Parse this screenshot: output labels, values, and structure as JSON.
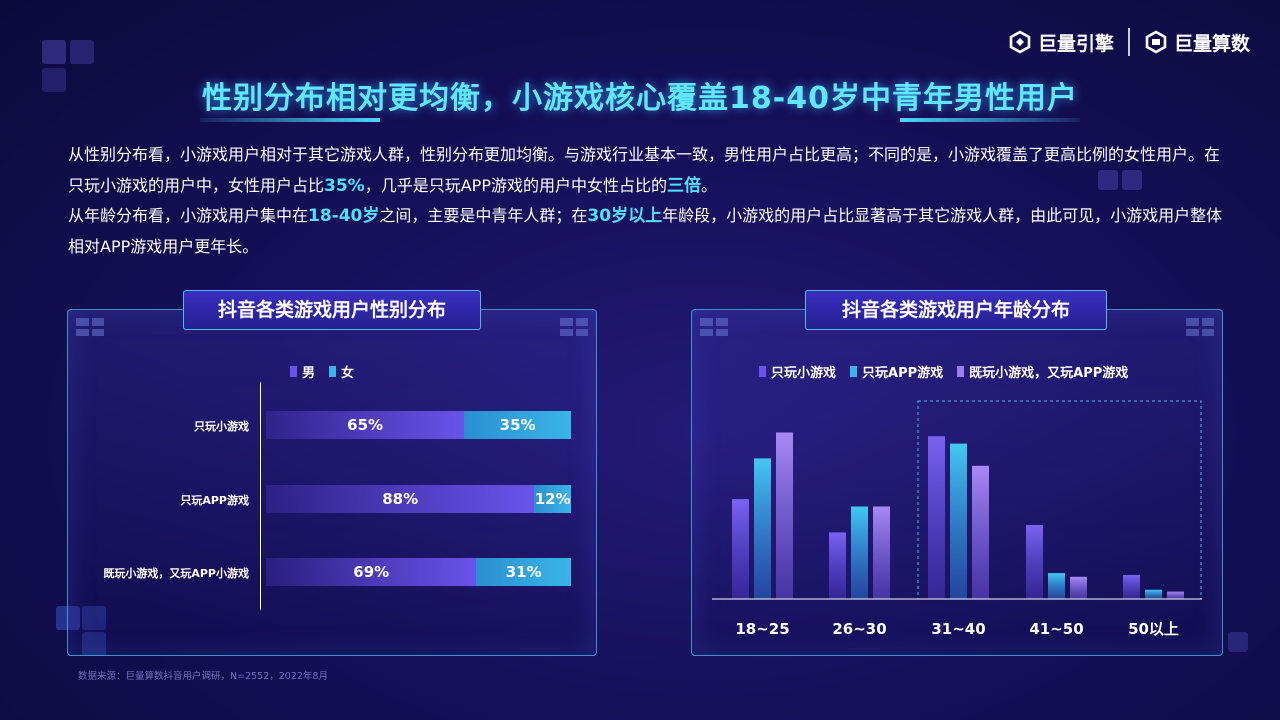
{
  "logos": {
    "left": "巨量引擎",
    "right": "巨量算数"
  },
  "title": "性别分布相对更均衡，小游戏核心覆盖18-40岁中青年男性用户",
  "description": {
    "p1": {
      "a": "从性别分布看，小游戏用户相对于其它游戏人群，性别分布更加均衡。与游戏行业基本一致，男性用户占比更高；不同的是，小游戏覆盖了更高比例的女性用户。在只玩小游戏的用户中，女性用户占比",
      "hl1": "35%",
      "b": "，几乎是只玩APP游戏的用户中女性占比的",
      "hl2": "三倍",
      "c": "。"
    },
    "p2": {
      "a": "从年龄分布看，小游戏用户集中在",
      "hl1": "18-40岁",
      "b": "之间，主要是中青年人群；在",
      "hl2": "30岁以上",
      "c": "年龄段，小游戏的用户占比显著高于其它游戏人群，由此可见，小游戏用户整体相对APP游戏用户更年长。"
    }
  },
  "source": "数据来源：巨量算数抖音用户调研，N=2552，2022年8月",
  "colors": {
    "male": "#6a53ea",
    "female": "#39b5e8",
    "series": [
      "#6b55e8",
      "#38b4e6",
      "#9a7ef0"
    ],
    "highlight": "#4ee2ff"
  },
  "chart_data": [
    {
      "type": "bar",
      "orientation": "horizontal-stacked",
      "title": "抖音各类游戏用户性别分布",
      "legend": [
        "男",
        "女"
      ],
      "legend_position": "top",
      "categories": [
        "只玩小游戏",
        "只玩APP游戏",
        "既玩小游戏，又玩APP小游戏"
      ],
      "series": [
        {
          "name": "男",
          "values": [
            65,
            88,
            69
          ],
          "labels": [
            "65%",
            "88%",
            "69%"
          ]
        },
        {
          "name": "女",
          "values": [
            35,
            12,
            31
          ],
          "labels": [
            "35%",
            "12%",
            "31%"
          ]
        }
      ],
      "xlim": [
        0,
        100
      ]
    },
    {
      "type": "bar",
      "orientation": "vertical-grouped",
      "title": "抖音各类游戏用户年龄分布",
      "legend": [
        "只玩小游戏",
        "只玩APP游戏",
        "既玩小游戏，又玩APP游戏"
      ],
      "legend_position": "top",
      "categories": [
        "18~25",
        "26~30",
        "31~40",
        "41~50",
        "50以上"
      ],
      "highlight_category": "31~40",
      "series": [
        {
          "name": "只玩小游戏",
          "values": [
            27,
            18,
            44,
            20,
            6.5
          ]
        },
        {
          "name": "只玩APP游戏",
          "values": [
            38,
            25,
            42,
            7,
            2.5
          ]
        },
        {
          "name": "既玩小游戏，又玩APP游戏",
          "values": [
            45,
            25,
            36,
            6,
            2
          ]
        }
      ],
      "ylim": [
        0,
        50
      ],
      "grid": false
    }
  ]
}
